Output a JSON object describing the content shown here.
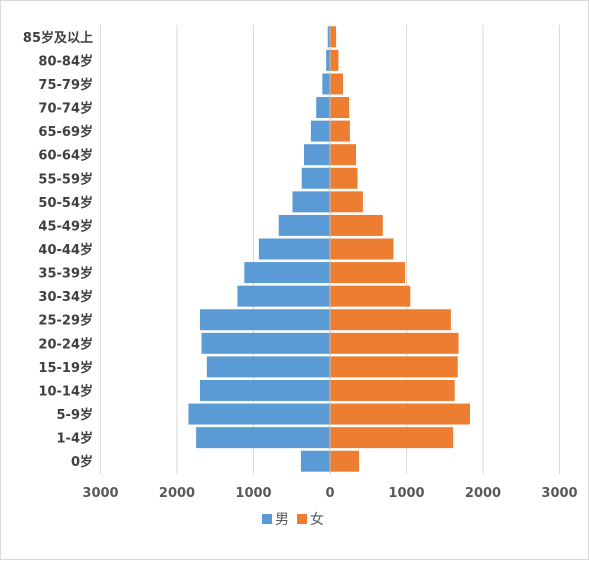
{
  "chart_data": {
    "type": "bar",
    "orientation": "horizontal",
    "layout": "population-pyramid",
    "categories": [
      "0岁",
      "1-4岁",
      "5-9岁",
      "10-14岁",
      "15-19岁",
      "20-24岁",
      "25-29岁",
      "30-34岁",
      "35-39岁",
      "40-44岁",
      "45-49岁",
      "50-54岁",
      "55-59岁",
      "60-64岁",
      "65-69岁",
      "70-74岁",
      "75-79岁",
      "80-84岁",
      "85岁及以上"
    ],
    "series": [
      {
        "name": "男",
        "color": "#5b9bd5",
        "values": [
          380,
          1750,
          1850,
          1700,
          1610,
          1680,
          1700,
          1210,
          1120,
          930,
          670,
          490,
          370,
          340,
          250,
          180,
          100,
          50,
          30
        ]
      },
      {
        "name": "女",
        "color": "#ed7d31",
        "values": [
          380,
          1610,
          1830,
          1630,
          1670,
          1680,
          1580,
          1050,
          980,
          830,
          690,
          430,
          360,
          340,
          260,
          250,
          170,
          110,
          80
        ]
      }
    ],
    "xlim": [
      -3000,
      3000
    ],
    "x_ticks": [
      -3000,
      -2000,
      -1000,
      0,
      1000,
      2000,
      3000
    ],
    "x_tick_labels": [
      "3000",
      "2000",
      "1000",
      "0",
      "1000",
      "2000",
      "3000"
    ],
    "xlabel": "",
    "ylabel": "",
    "title": "",
    "grid": "vertical",
    "legend_position": "bottom"
  }
}
